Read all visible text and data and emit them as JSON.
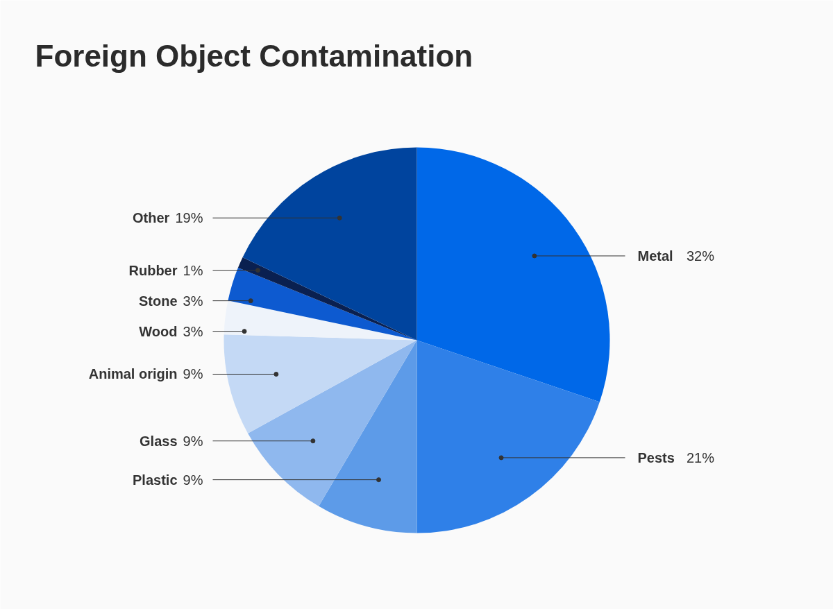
{
  "chart_data": {
    "type": "pie",
    "title": "Foreign Object Contamination",
    "categories": [
      "Metal",
      "Pests",
      "Plastic",
      "Glass",
      "Animal origin",
      "Wood",
      "Stone",
      "Rubber",
      "Other"
    ],
    "values": [
      32,
      21,
      9,
      9,
      9,
      3,
      3,
      1,
      19
    ],
    "value_labels": [
      "32%",
      "21%",
      "9%",
      "9%",
      "9%",
      "3%",
      "3%",
      "1%",
      "19%"
    ],
    "colors": [
      "#0068e8",
      "#2f80e8",
      "#5d9be8",
      "#8fb8ee",
      "#c4d9f5",
      "#eef3fa",
      "#0d5ad0",
      "#0a2050",
      "#00449e"
    ]
  }
}
